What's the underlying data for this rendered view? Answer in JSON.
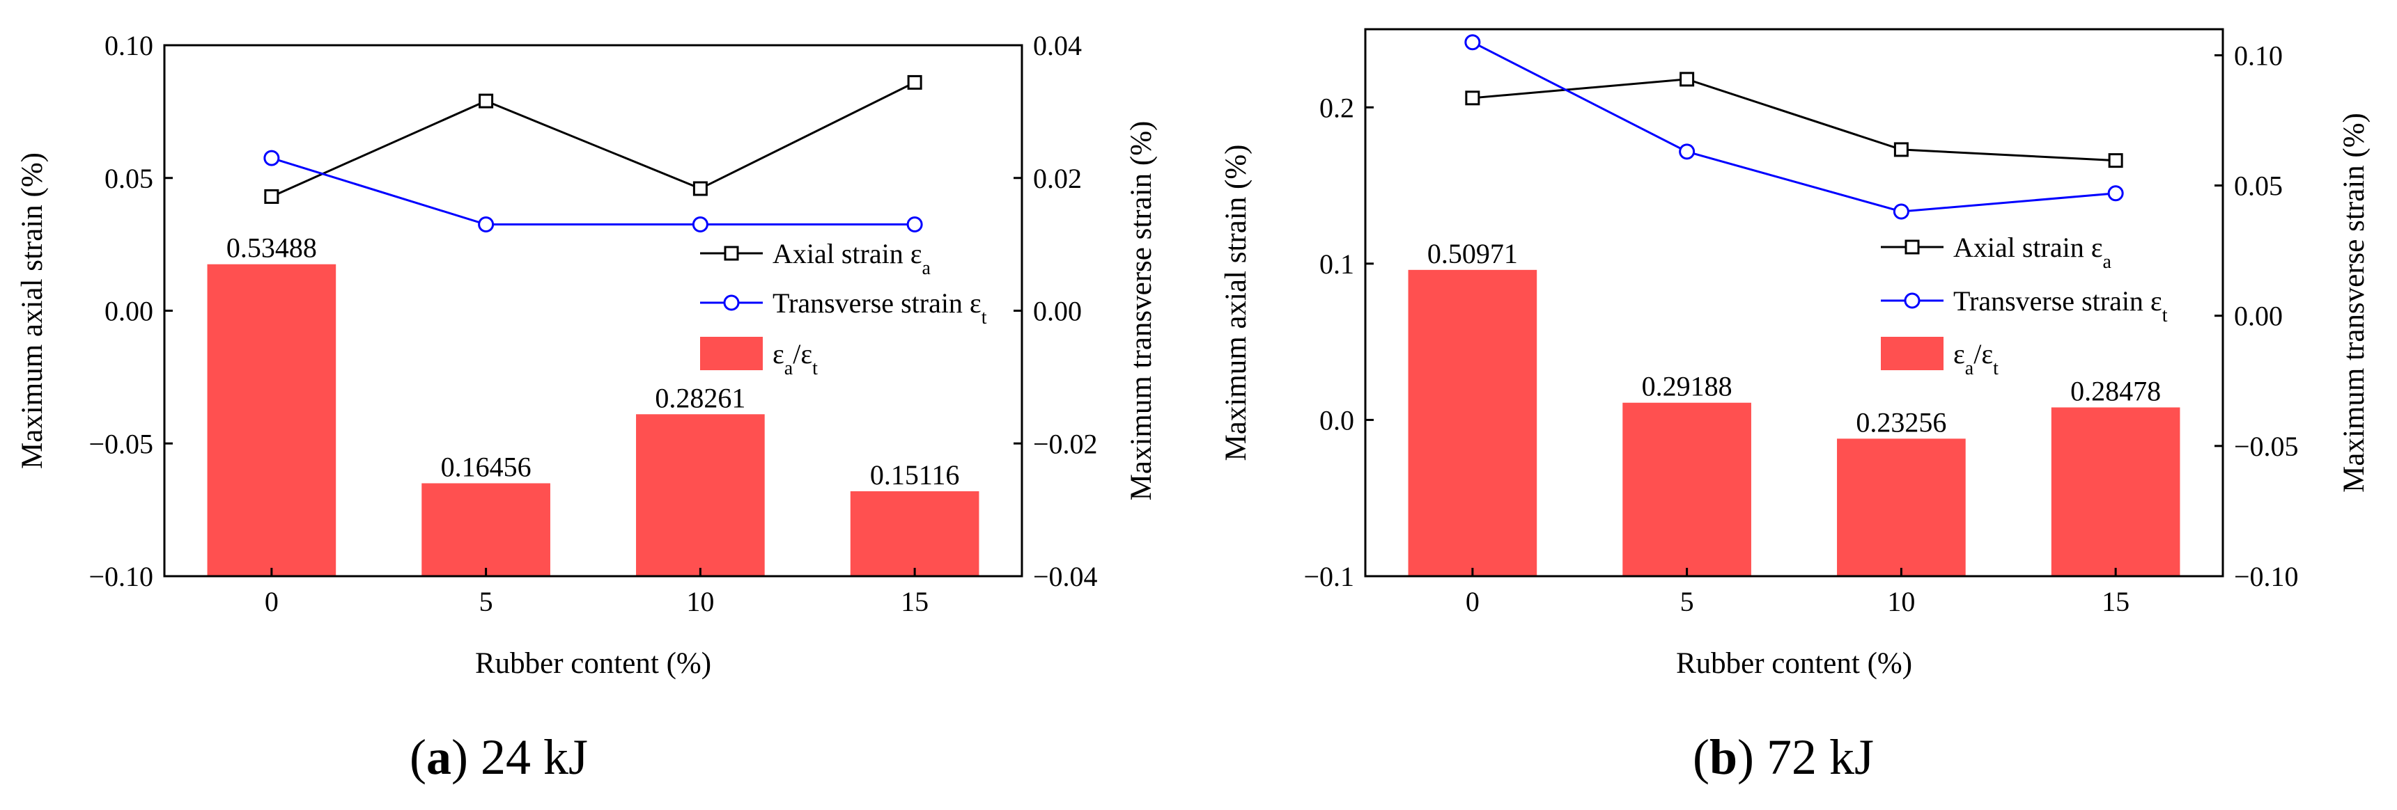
{
  "chart_data": [
    {
      "type": "bar+line",
      "panel_label": "a",
      "subtitle": "24 kJ",
      "xlabel": "Rubber content (%)",
      "ylabel_left": "Maximum axial strain (%)",
      "ylabel_right": "Maximum transverse strain (%)",
      "categories": [
        "0",
        "5",
        "10",
        "15"
      ],
      "ylim_left": [
        -0.1,
        0.1
      ],
      "yticks_left": [
        -0.1,
        -0.05,
        0.0,
        0.05,
        0.1
      ],
      "ytick_labels_left": [
        "−0.10",
        "−0.05",
        "0.00",
        "0.05",
        "0.10"
      ],
      "ylim_right": [
        -0.04,
        0.04
      ],
      "yticks_right": [
        -0.04,
        -0.02,
        0.0,
        0.02,
        0.04
      ],
      "ytick_labels_right": [
        "−0.04",
        "−0.02",
        "0.00",
        "0.02",
        "0.04"
      ],
      "legend": {
        "axial": "Axial strain ε",
        "axial_sub": "a",
        "transverse": "Transverse strain ε",
        "transverse_sub": "t",
        "ratio_num": "ε",
        "ratio_num_sub": "a",
        "ratio_den": "/ε",
        "ratio_den_sub": "t"
      },
      "series": [
        {
          "name": "Axial strain εa",
          "axis": "left",
          "marker": "square",
          "color": "#000000",
          "values": [
            0.043,
            0.079,
            0.046,
            0.086
          ]
        },
        {
          "name": "Transverse strain εt",
          "axis": "right",
          "marker": "circle",
          "color": "#0000ff",
          "values": [
            0.023,
            0.013,
            0.013,
            0.013
          ]
        },
        {
          "name": "εa/εt",
          "axis": "left",
          "marker": "bar",
          "color": "#ff5050",
          "values": [
            0.0175,
            -0.065,
            -0.039,
            -0.068
          ],
          "labels": [
            "0.53488",
            "0.16456",
            "0.28261",
            "0.15116"
          ]
        }
      ]
    },
    {
      "type": "bar+line",
      "panel_label": "b",
      "subtitle": "72 kJ",
      "xlabel": "Rubber content (%)",
      "ylabel_left": "Maximum axial strain (%)",
      "ylabel_right": "Maximum transverse strain (%)",
      "categories": [
        "0",
        "5",
        "10",
        "15"
      ],
      "ylim_left": [
        -0.1,
        0.25
      ],
      "yticks_left": [
        -0.1,
        0.0,
        0.1,
        0.2
      ],
      "ytick_labels_left": [
        "−0.1",
        "0.0",
        "0.1",
        "0.2"
      ],
      "ylim_right": [
        -0.1,
        0.11
      ],
      "yticks_right": [
        -0.1,
        -0.05,
        0.0,
        0.05,
        0.1
      ],
      "ytick_labels_right": [
        "−0.10",
        "−0.05",
        "0.00",
        "0.05",
        "0.10"
      ],
      "legend": {
        "axial": "Axial strain ε",
        "axial_sub": "a",
        "transverse": "Transverse strain ε",
        "transverse_sub": "t",
        "ratio_num": "ε",
        "ratio_num_sub": "a",
        "ratio_den": "/ε",
        "ratio_den_sub": "t"
      },
      "series": [
        {
          "name": "Axial strain εa",
          "axis": "left",
          "marker": "square",
          "color": "#000000",
          "values": [
            0.206,
            0.218,
            0.173,
            0.166
          ]
        },
        {
          "name": "Transverse strain εt",
          "axis": "right",
          "marker": "circle",
          "color": "#0000ff",
          "values": [
            0.105,
            0.063,
            0.04,
            0.047
          ]
        },
        {
          "name": "εa/εt",
          "axis": "left",
          "marker": "bar",
          "color": "#ff5050",
          "values": [
            0.096,
            0.011,
            -0.012,
            0.008
          ],
          "labels": [
            "0.50971",
            "0.29188",
            "0.23256",
            "0.28478"
          ]
        }
      ]
    }
  ]
}
